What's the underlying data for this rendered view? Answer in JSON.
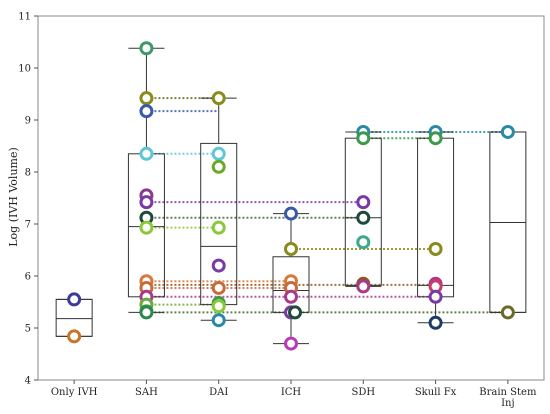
{
  "chart_data": {
    "type": "box",
    "title": "",
    "xlabel": "",
    "ylabel": "Log (IVH Volume)",
    "ylim": [
      4,
      11
    ],
    "yticks": [
      "4",
      "5",
      "6",
      "7",
      "8",
      "9",
      "10",
      "11"
    ],
    "categories": [
      "Only IVH",
      "SAH",
      "DAI",
      "ICH",
      "SDH",
      "Skull Fx",
      "Brain Stem Inj"
    ],
    "boxes": [
      {
        "category": "Only IVH",
        "min": 4.84,
        "q1": 4.84,
        "median": 5.18,
        "q3": 5.55,
        "max": 5.55
      },
      {
        "category": "SAH",
        "min": 5.3,
        "q1": 5.6,
        "median": 6.95,
        "q3": 8.35,
        "max": 10.38
      },
      {
        "category": "DAI",
        "min": 5.15,
        "q1": 5.45,
        "median": 6.57,
        "q3": 8.55,
        "max": 9.42
      },
      {
        "category": "ICH",
        "min": 4.7,
        "q1": 5.3,
        "median": 5.72,
        "q3": 6.37,
        "max": 7.2
      },
      {
        "category": "SDH",
        "min": 5.8,
        "q1": 5.82,
        "median": 7.12,
        "q3": 8.65,
        "max": 8.77
      },
      {
        "category": "Skull Fx",
        "min": 5.1,
        "q1": 5.6,
        "median": 5.82,
        "q3": 8.65,
        "max": 8.77
      },
      {
        "category": "Brain Stem Inj",
        "min": 5.3,
        "q1": 5.3,
        "median": 7.03,
        "q3": 8.77,
        "max": 8.77
      }
    ],
    "points": [
      {
        "category": "Only IVH",
        "y": 5.55,
        "color": "#3b3b9a"
      },
      {
        "category": "Only IVH",
        "y": 4.84,
        "color": "#c8742a"
      },
      {
        "category": "SAH",
        "y": 10.38,
        "color": "#3c9a6a"
      },
      {
        "category": "SAH",
        "y": 9.42,
        "color": "#8a8a1e"
      },
      {
        "category": "SAH",
        "y": 9.17,
        "color": "#3a5aa8"
      },
      {
        "category": "SAH",
        "y": 8.35,
        "color": "#5fc6d8"
      },
      {
        "category": "SAH",
        "y": 7.55,
        "color": "#8a3a8a"
      },
      {
        "category": "SAH",
        "y": 7.42,
        "color": "#7a3aa6"
      },
      {
        "category": "SAH",
        "y": 7.12,
        "color": "#1e4a3a"
      },
      {
        "category": "SAH",
        "y": 6.93,
        "color": "#8ac83a"
      },
      {
        "category": "SAH",
        "y": 5.9,
        "color": "#d8783a"
      },
      {
        "category": "SAH",
        "y": 5.77,
        "color": "#c86a3a"
      },
      {
        "category": "SAH",
        "y": 5.6,
        "color": "#a83a8a"
      },
      {
        "category": "SAH",
        "y": 5.45,
        "color": "#6aaa3a"
      },
      {
        "category": "SAH",
        "y": 5.32,
        "color": "#3a9a4a"
      },
      {
        "category": "SAH",
        "y": 5.3,
        "color": "#2a8a4a"
      },
      {
        "category": "DAI",
        "y": 9.42,
        "color": "#8a8a1e"
      },
      {
        "category": "DAI",
        "y": 8.35,
        "color": "#5fc6d8"
      },
      {
        "category": "DAI",
        "y": 8.1,
        "color": "#6aa82a"
      },
      {
        "category": "DAI",
        "y": 6.93,
        "color": "#8ac83a"
      },
      {
        "category": "DAI",
        "y": 6.2,
        "color": "#7a3aa6"
      },
      {
        "category": "DAI",
        "y": 5.77,
        "color": "#c86a3a"
      },
      {
        "category": "DAI",
        "y": 5.48,
        "color": "#3a9a4a"
      },
      {
        "category": "DAI",
        "y": 5.42,
        "color": "#8ac83a"
      },
      {
        "category": "DAI",
        "y": 5.15,
        "color": "#2a8aa6"
      },
      {
        "category": "ICH",
        "y": 7.2,
        "color": "#3a5aa8"
      },
      {
        "category": "ICH",
        "y": 6.52,
        "color": "#8a8a1e"
      },
      {
        "category": "ICH",
        "y": 5.9,
        "color": "#d8783a"
      },
      {
        "category": "ICH",
        "y": 5.77,
        "color": "#c86a3a"
      },
      {
        "category": "ICH",
        "y": 5.6,
        "color": "#a83a8a"
      },
      {
        "category": "ICH",
        "y": 5.3,
        "color": "#7a3aa6"
      },
      {
        "category": "ICH",
        "y": 5.3,
        "color": "#1e4a3a"
      },
      {
        "category": "ICH",
        "y": 4.7,
        "color": "#b83ab8"
      },
      {
        "category": "SDH",
        "y": 8.77,
        "color": "#2a8aa6"
      },
      {
        "category": "SDH",
        "y": 8.65,
        "color": "#3a9a4a"
      },
      {
        "category": "SDH",
        "y": 7.42,
        "color": "#7a3aa6"
      },
      {
        "category": "SDH",
        "y": 7.12,
        "color": "#1e4a3a"
      },
      {
        "category": "SDH",
        "y": 6.65,
        "color": "#3aa88a"
      },
      {
        "category": "SDH",
        "y": 5.85,
        "color": "#8a5a1e"
      },
      {
        "category": "SDH",
        "y": 5.8,
        "color": "#a83a8a"
      },
      {
        "category": "Skull Fx",
        "y": 8.77,
        "color": "#2a8aa6"
      },
      {
        "category": "Skull Fx",
        "y": 8.65,
        "color": "#3a9a4a"
      },
      {
        "category": "Skull Fx",
        "y": 6.52,
        "color": "#8a8a1e"
      },
      {
        "category": "Skull Fx",
        "y": 5.85,
        "color": "#a83a8a"
      },
      {
        "category": "Skull Fx",
        "y": 5.8,
        "color": "#c83a6a"
      },
      {
        "category": "Skull Fx",
        "y": 5.6,
        "color": "#7a3aa6"
      },
      {
        "category": "Skull Fx",
        "y": 5.1,
        "color": "#1e3a6a"
      },
      {
        "category": "Brain Stem Inj",
        "y": 8.77,
        "color": "#2a8aa6"
      },
      {
        "category": "Brain Stem Inj",
        "y": 5.3,
        "color": "#6a6a2a"
      }
    ],
    "connectors": [
      {
        "y": 9.42,
        "from": "SAH",
        "to": "DAI",
        "color": "#6a6a1e"
      },
      {
        "y": 9.17,
        "from": "SAH",
        "to": "DAI",
        "color": "#3a5aa8"
      },
      {
        "y": 8.35,
        "from": "SAH",
        "to": "DAI",
        "color": "#5fc6d8"
      },
      {
        "y": 7.42,
        "from": "SAH",
        "to": "SDH",
        "color": "#7a3aa6"
      },
      {
        "y": 7.12,
        "from": "SAH",
        "to": "SDH",
        "color": "#4a6a3a"
      },
      {
        "y": 6.93,
        "from": "SAH",
        "to": "DAI",
        "color": "#8ac83a"
      },
      {
        "y": 6.52,
        "from": "ICH",
        "to": "Skull Fx",
        "color": "#8a8a1e"
      },
      {
        "y": 5.9,
        "from": "SAH",
        "to": "ICH",
        "color": "#d8783a"
      },
      {
        "y": 5.83,
        "from": "SAH",
        "to": "Skull Fx",
        "color": "#8a5a1e"
      },
      {
        "y": 5.77,
        "from": "SAH",
        "to": "ICH",
        "color": "#c86a3a"
      },
      {
        "y": 5.6,
        "from": "SAH",
        "to": "Skull Fx",
        "color": "#a83a8a"
      },
      {
        "y": 5.45,
        "from": "SAH",
        "to": "DAI",
        "color": "#6aaa3a"
      },
      {
        "y": 5.3,
        "from": "SAH",
        "to": "Brain Stem Inj",
        "color": "#4a6a2a"
      },
      {
        "y": 8.77,
        "from": "SDH",
        "to": "Brain Stem Inj",
        "color": "#2a8aa6"
      },
      {
        "y": 8.65,
        "from": "SDH",
        "to": "Skull Fx",
        "color": "#3a9a4a"
      }
    ],
    "grid": false,
    "legend": "none"
  }
}
